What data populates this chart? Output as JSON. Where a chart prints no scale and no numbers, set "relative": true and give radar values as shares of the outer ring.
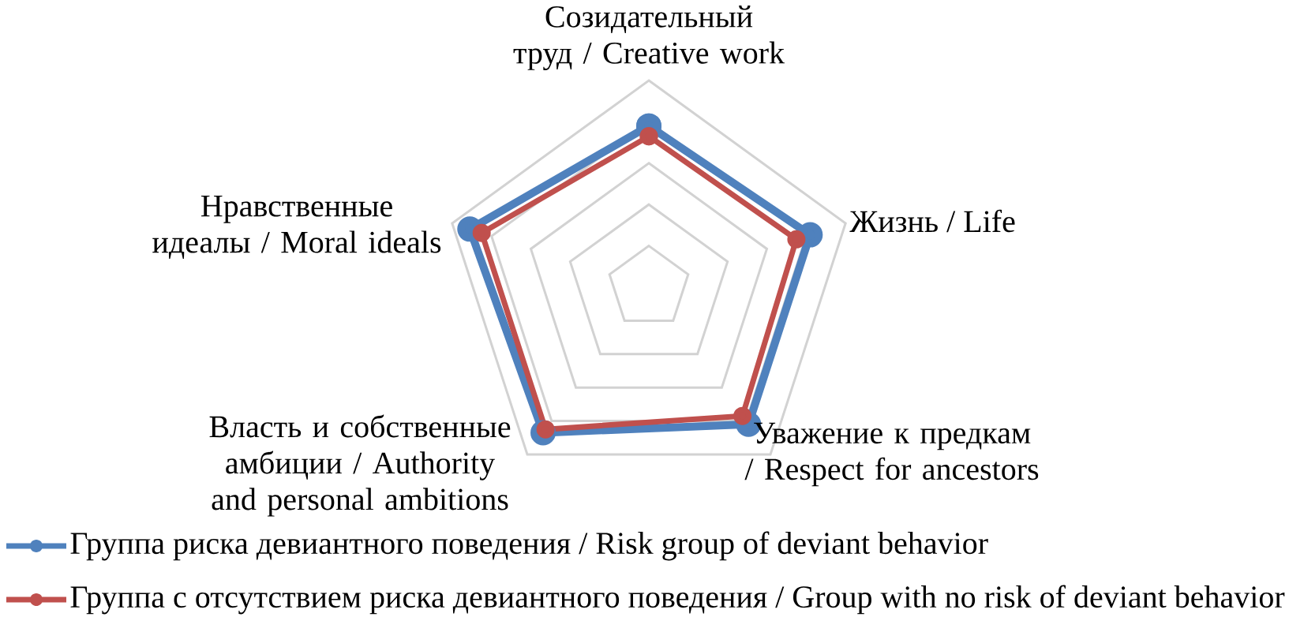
{
  "chart_data": {
    "type": "radar",
    "relative": true,
    "grid": true,
    "legend": "bottom",
    "marker": "circle",
    "line_style": "solid",
    "categories": [
      "Созидательный труд / Creative work",
      "Жизнь / Life",
      "Уважение к предкам / Respect for ancestors",
      "Власть и собственные амбиции / Authority and personal ambitions",
      "Нравственные идеалы / Moral ideals"
    ],
    "series": [
      {
        "name": "Группа риска девиантного поведения / Risk group of deviant behavior",
        "color": "#4f81bd",
        "values": [
          0.78,
          0.82,
          0.82,
          0.87,
          0.91
        ]
      },
      {
        "name": "Группа с отсутствием риска девиантного поведения / Group with no risk of deviant behavior",
        "color": "#c0504d",
        "values": [
          0.73,
          0.75,
          0.77,
          0.85,
          0.85
        ]
      }
    ]
  }
}
